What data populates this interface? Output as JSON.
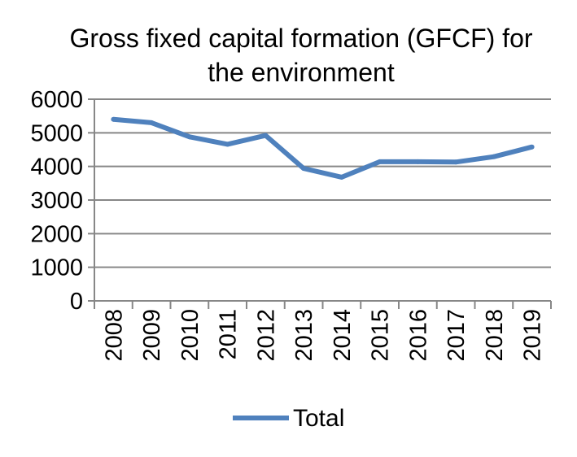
{
  "chart_data": {
    "type": "line",
    "title_line1": "Gross fixed capital formation (GFCF) for",
    "title_line2": "the environment",
    "categories": [
      "2008",
      "2009",
      "2010",
      "2011",
      "2012",
      "2013",
      "2014",
      "2015",
      "2016",
      "2017",
      "2018",
      "2019"
    ],
    "series": [
      {
        "name": "Total",
        "color": "#4f81bd",
        "values": [
          5400,
          5300,
          4880,
          4660,
          4920,
          3940,
          3680,
          4140,
          4140,
          4130,
          4290,
          4580
        ]
      }
    ],
    "ylim": [
      0,
      6000
    ],
    "yticks": [
      0,
      1000,
      2000,
      3000,
      4000,
      5000,
      6000
    ],
    "grid": true,
    "legend_position": "bottom"
  }
}
